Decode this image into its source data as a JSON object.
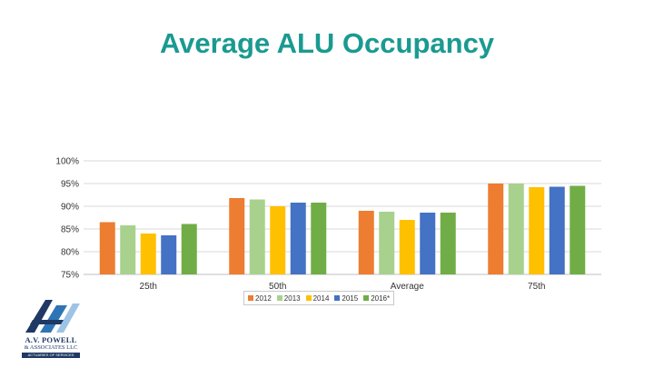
{
  "slide": {
    "title": "Average ALU Occupancy"
  },
  "chart_data": {
    "type": "bar",
    "title": "",
    "xlabel": "",
    "ylabel": "",
    "ylim": [
      0.75,
      1.0
    ],
    "yticks": [
      0.75,
      0.8,
      0.85,
      0.9,
      0.95,
      1.0
    ],
    "ytick_labels": [
      "75%",
      "80%",
      "85%",
      "90%",
      "95%",
      "100%"
    ],
    "grid": true,
    "legend_position": "bottom",
    "categories": [
      "25th",
      "50th",
      "Average",
      "75th"
    ],
    "series": [
      {
        "name": "2012",
        "color": "#ed7d31",
        "values": [
          0.865,
          0.918,
          0.89,
          0.95
        ]
      },
      {
        "name": "2013",
        "color": "#a9d18e",
        "values": [
          0.858,
          0.915,
          0.888,
          0.95
        ]
      },
      {
        "name": "2014",
        "color": "#ffc000",
        "values": [
          0.84,
          0.9,
          0.87,
          0.942
        ]
      },
      {
        "name": "2015",
        "color": "#4472c4",
        "values": [
          0.836,
          0.908,
          0.886,
          0.943
        ]
      },
      {
        "name": "2016*",
        "color": "#70ad47",
        "values": [
          0.861,
          0.908,
          0.886,
          0.945
        ]
      }
    ]
  },
  "logo": {
    "monogram": "AVP",
    "name": "A.V. POWELL",
    "sub": "& ASSOCIATES LLC",
    "tagline": "ACTUARIES OF SERVICES"
  }
}
